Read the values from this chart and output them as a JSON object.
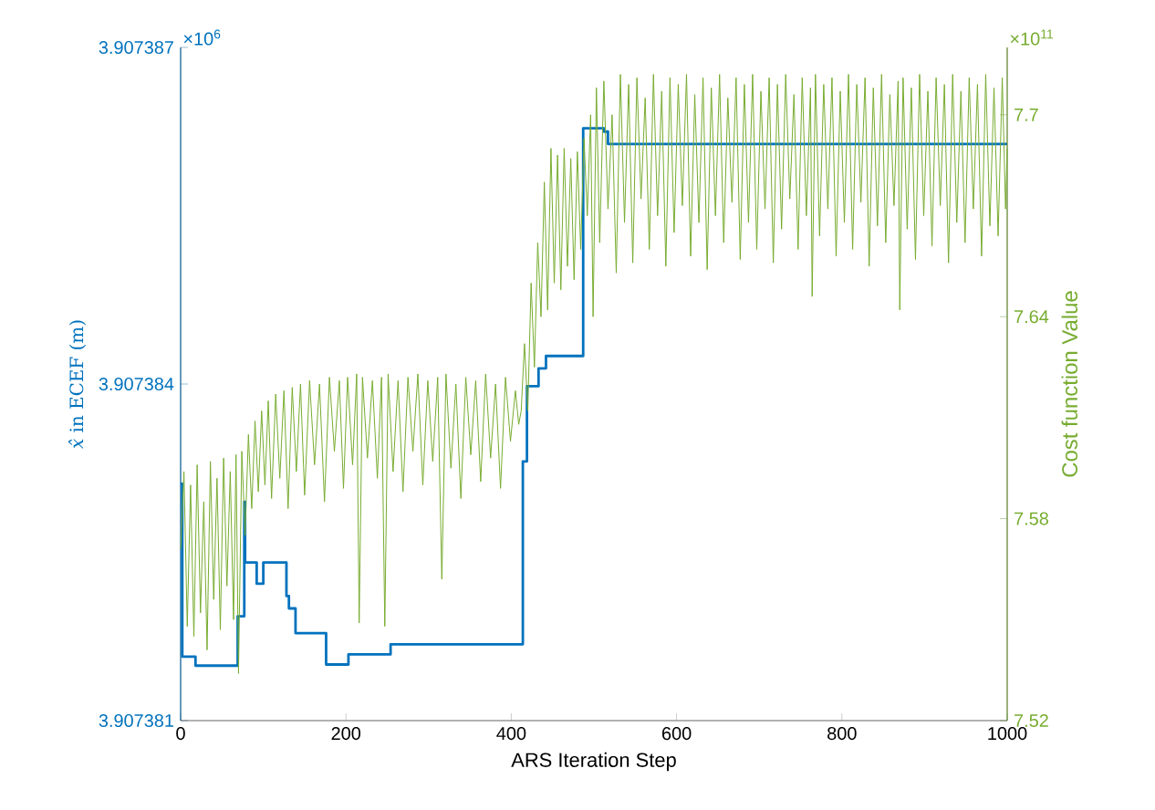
{
  "chart_data": {
    "type": "line",
    "xlabel": "ARS Iteration Step",
    "ylabel": "*x̂* in ECEF (m)",
    "y2label": "Cost function Value",
    "annotations": [
      "×10$^{6}$",
      "×10$^{11}$"
    ],
    "xlim": [
      0,
      1000
    ],
    "xticks": [
      0,
      200,
      400,
      600,
      800,
      1000
    ],
    "ylim": [
      3.907381,
      3.907387
    ],
    "yticks": [
      3.907381,
      3.907384,
      3.907387
    ],
    "y2lim": [
      7.52,
      7.72
    ],
    "y2ticks": [
      7.52,
      7.58,
      7.64,
      7.7
    ],
    "series": [
      {
        "type": "step",
        "axis": "y",
        "color": "#0072bd",
        "x": [
          0,
          2,
          18,
          68,
          69,
          76,
          77,
          78,
          90,
          92,
          98,
          100,
          121,
          128,
          131,
          139,
          174,
          176,
          201,
          203,
          252,
          254,
          413,
          414,
          419,
          433,
          442,
          486,
          487,
          512,
          517,
          1000
        ],
        "values": [
          3.90738311,
          3.90738157,
          3.90738149,
          3.90738149,
          3.90738193,
          3.90738193,
          3.90738295,
          3.90738241,
          3.90738241,
          3.90738222,
          3.90738222,
          3.90738241,
          3.90738241,
          3.90738211,
          3.907382,
          3.90738178,
          3.90738178,
          3.9073815,
          3.9073815,
          3.90738159,
          3.90738159,
          3.90738168,
          3.90738168,
          3.90738331,
          3.90738398,
          3.90738414,
          3.90738425,
          3.90738425,
          3.90738628,
          3.90738625,
          3.90738614,
          3.90738614
        ]
      },
      {
        "axis": "y2",
        "color": "#77ac30",
        "x": [
          0,
          4,
          8,
          12,
          16,
          20,
          24,
          28,
          32,
          36,
          40,
          44,
          48,
          52,
          56,
          60,
          64,
          67,
          70,
          74,
          78,
          82,
          86,
          90,
          94,
          98,
          102,
          106,
          110,
          115,
          120,
          125,
          130,
          135,
          140,
          145,
          150,
          156,
          162,
          168,
          174,
          180,
          186,
          192,
          197,
          202,
          208,
          213,
          216,
          220,
          226,
          232,
          238,
          243,
          247,
          251,
          257,
          263,
          269,
          275,
          281,
          287,
          293,
          299,
          305,
          311,
          316,
          321,
          327,
          333,
          339,
          345,
          351,
          357,
          363,
          369,
          375,
          381,
          387,
          393,
          399,
          405,
          409,
          412,
          416,
          420,
          424,
          428,
          432,
          436,
          440,
          444,
          448,
          452,
          456,
          460,
          464,
          468,
          472,
          476,
          480,
          484,
          488,
          492,
          496,
          499,
          503,
          507,
          512,
          517,
          522,
          527,
          532,
          537,
          542,
          547,
          552,
          557,
          562,
          567,
          572,
          577,
          582,
          587,
          592,
          597,
          602,
          607,
          612,
          617,
          622,
          627,
          632,
          637,
          642,
          647,
          652,
          657,
          662,
          667,
          672,
          677,
          682,
          687,
          692,
          697,
          702,
          707,
          712,
          717,
          722,
          727,
          732,
          737,
          742,
          747,
          752,
          757,
          762,
          764,
          768,
          773,
          778,
          783,
          788,
          793,
          798,
          803,
          808,
          813,
          818,
          823,
          828,
          833,
          838,
          843,
          848,
          853,
          858,
          863,
          868,
          870,
          874,
          879,
          884,
          889,
          894,
          899,
          904,
          909,
          914,
          919,
          924,
          929,
          934,
          939,
          944,
          949,
          954,
          959,
          964,
          969,
          974,
          979,
          984,
          989,
          994,
          998,
          1000
        ],
        "values": [
          7.571,
          7.594,
          7.548,
          7.59,
          7.545,
          7.596,
          7.552,
          7.585,
          7.541,
          7.597,
          7.556,
          7.592,
          7.547,
          7.598,
          7.56,
          7.594,
          7.55,
          7.599,
          7.534,
          7.6,
          7.575,
          7.605,
          7.583,
          7.609,
          7.588,
          7.612,
          7.59,
          7.615,
          7.586,
          7.617,
          7.592,
          7.618,
          7.583,
          7.619,
          7.594,
          7.62,
          7.587,
          7.621,
          7.596,
          7.62,
          7.585,
          7.622,
          7.6,
          7.621,
          7.589,
          7.622,
          7.596,
          7.623,
          7.549,
          7.622,
          7.598,
          7.621,
          7.592,
          7.622,
          7.548,
          7.623,
          7.594,
          7.621,
          7.588,
          7.622,
          7.6,
          7.623,
          7.59,
          7.621,
          7.597,
          7.622,
          7.562,
          7.623,
          7.595,
          7.62,
          7.586,
          7.622,
          7.599,
          7.621,
          7.591,
          7.623,
          7.598,
          7.62,
          7.589,
          7.622,
          7.603,
          7.618,
          7.608,
          7.612,
          7.632,
          7.612,
          7.65,
          7.625,
          7.662,
          7.64,
          7.68,
          7.642,
          7.69,
          7.65,
          7.688,
          7.648,
          7.69,
          7.655,
          7.687,
          7.651,
          7.689,
          7.66,
          7.693,
          7.67,
          7.7,
          7.64,
          7.708,
          7.662,
          7.71,
          7.672,
          7.7,
          7.653,
          7.712,
          7.668,
          7.709,
          7.656,
          7.711,
          7.675,
          7.705,
          7.66,
          7.712,
          7.67,
          7.707,
          7.655,
          7.711,
          7.665,
          7.709,
          7.673,
          7.712,
          7.658,
          7.706,
          7.668,
          7.711,
          7.654,
          7.708,
          7.67,
          7.712,
          7.662,
          7.705,
          7.674,
          7.711,
          7.657,
          7.709,
          7.668,
          7.712,
          7.66,
          7.707,
          7.672,
          7.711,
          7.656,
          7.709,
          7.666,
          7.712,
          7.675,
          7.706,
          7.66,
          7.711,
          7.67,
          7.708,
          7.646,
          7.712,
          7.664,
          7.709,
          7.672,
          7.711,
          7.658,
          7.707,
          7.668,
          7.712,
          7.66,
          7.709,
          7.674,
          7.711,
          7.655,
          7.708,
          7.667,
          7.712,
          7.662,
          7.706,
          7.673,
          7.71,
          7.642,
          7.711,
          7.666,
          7.708,
          7.657,
          7.712,
          7.67,
          7.707,
          7.661,
          7.711,
          7.673,
          7.709,
          7.656,
          7.712,
          7.668,
          7.707,
          7.662,
          7.711,
          7.672,
          7.709,
          7.658,
          7.712,
          7.667,
          7.708,
          7.664,
          7.711,
          7.672,
          7.69
        ]
      }
    ]
  }
}
